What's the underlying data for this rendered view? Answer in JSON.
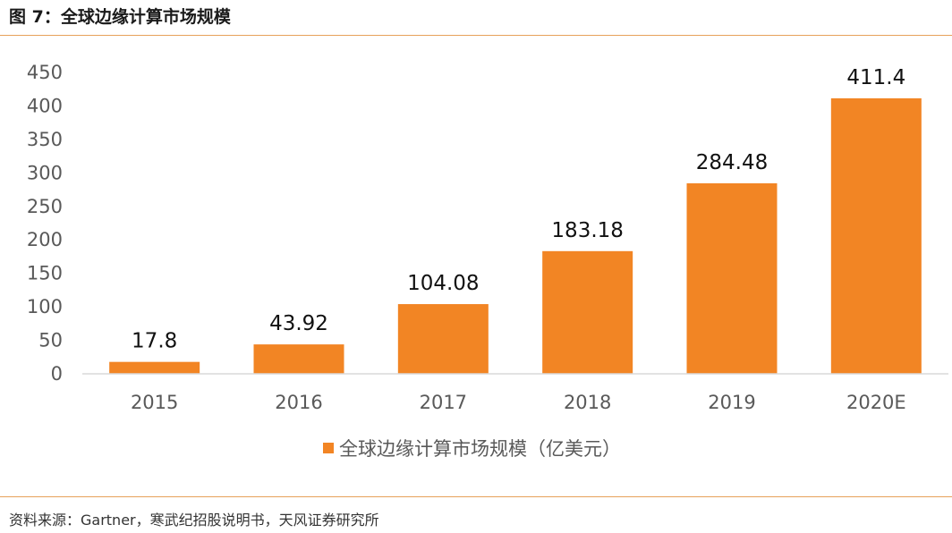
{
  "figure": {
    "title": "图 7：全球边缘计算市场规模",
    "source": "资料来源：Gartner，寒武纪招股说明书，天风证券研究所"
  },
  "colors": {
    "bar": "#f28524",
    "axis": "#d9d9d9",
    "rule": "#e7a15a"
  },
  "chart_data": {
    "type": "bar",
    "title": "",
    "xlabel": "",
    "ylabel": "",
    "categories": [
      "2015",
      "2016",
      "2017",
      "2018",
      "2019",
      "2020E"
    ],
    "series": [
      {
        "name": "全球边缘计算市场规模（亿美元）",
        "values": [
          17.8,
          43.92,
          104.08,
          183.18,
          284.48,
          411.4
        ]
      }
    ],
    "data_labels": [
      "17.8",
      "43.92",
      "104.08",
      "183.18",
      "284.48",
      "411.4"
    ],
    "ylim": [
      0,
      450
    ],
    "yticks": [
      "0",
      "50",
      "100",
      "150",
      "200",
      "250",
      "300",
      "350",
      "400",
      "450"
    ],
    "grid": false,
    "legend_position": "bottom"
  }
}
